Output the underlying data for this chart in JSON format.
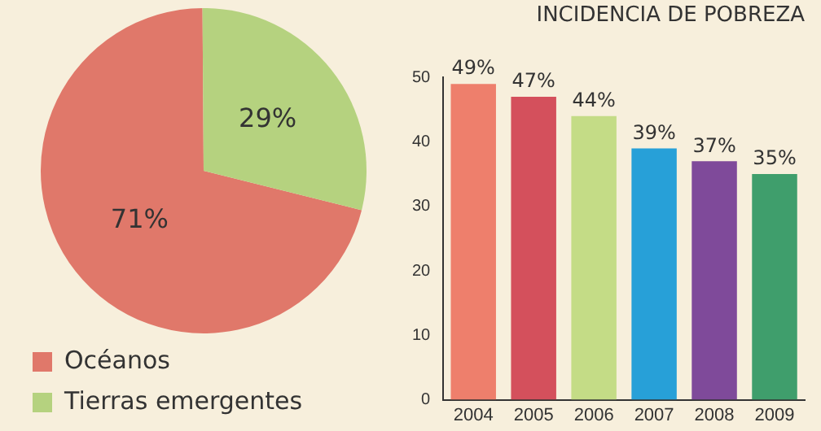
{
  "chart_data": [
    {
      "type": "pie",
      "categories": [
        "Océanos",
        "Tierras emergentes"
      ],
      "values": [
        71,
        29
      ],
      "colors": [
        "#e0786a",
        "#b5d27f"
      ],
      "value_labels": [
        "71%",
        "29%"
      ],
      "legend": "bottom left"
    },
    {
      "type": "bar",
      "title": "INCIDENCIA DE POBREZA",
      "categories": [
        "2004",
        "2005",
        "2006",
        "2007",
        "2008",
        "2009"
      ],
      "values": [
        49,
        47,
        44,
        39,
        37,
        35
      ],
      "colors": [
        "#ee7f6c",
        "#d4505c",
        "#c4dc86",
        "#27a0d8",
        "#7f4a9a",
        "#3f9e6c"
      ],
      "value_labels": [
        "49%",
        "47%",
        "44%",
        "39%",
        "37%",
        "35%"
      ],
      "ylim": [
        0,
        50
      ],
      "yticks": [
        0,
        10,
        20,
        30,
        40,
        50
      ],
      "grid": false,
      "legend": false
    }
  ]
}
